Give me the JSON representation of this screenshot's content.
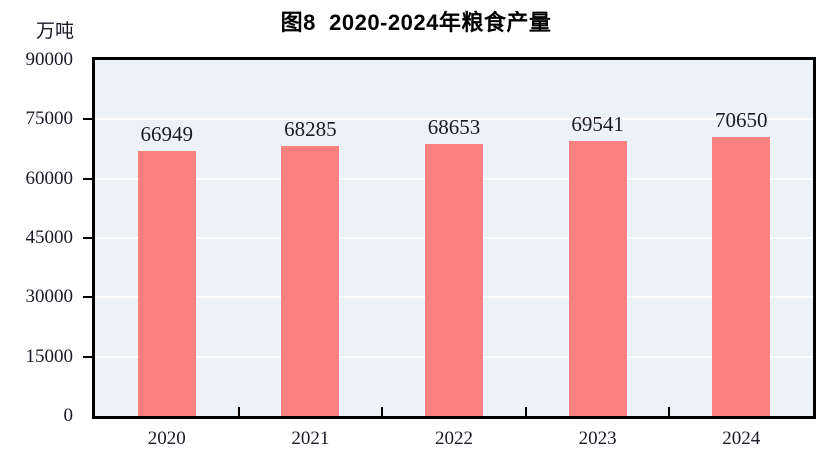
{
  "figure": {
    "title": "图8  2020-2024年粮食产量",
    "unit_label": "万吨"
  },
  "chart_data": {
    "type": "bar",
    "title": "图8 2020-2024年粮食产量",
    "categories": [
      "2020",
      "2021",
      "2022",
      "2023",
      "2024"
    ],
    "values": [
      66949,
      68285,
      68653,
      69541,
      70650
    ],
    "value_labels": [
      "66949",
      "68285",
      "68653",
      "69541",
      "70650"
    ],
    "xlabel": "",
    "ylabel": "万吨",
    "ylim": [
      0,
      90000
    ],
    "yticks": [
      0,
      15000,
      30000,
      45000,
      60000,
      75000,
      90000
    ],
    "grid": true,
    "legend": "none",
    "colors": {
      "bar": "#FB8181",
      "plot_background": "#EDF2F7",
      "gridline": "#FFFFFF",
      "axis": "#000000",
      "text": "#1A1A26"
    }
  }
}
